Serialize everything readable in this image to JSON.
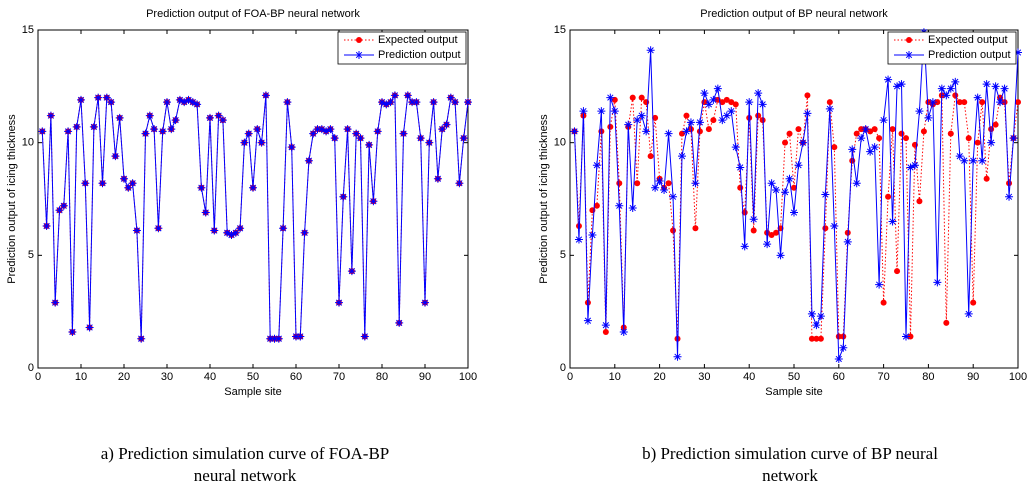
{
  "chart_data": [
    {
      "type": "line",
      "title": "Prediction output of FOA-BP neural network",
      "xlabel": "Sample site",
      "ylabel": "Prediction output of icing thickness",
      "x": [
        1,
        2,
        3,
        4,
        5,
        6,
        7,
        8,
        9,
        10,
        11,
        12,
        13,
        14,
        15,
        16,
        17,
        18,
        19,
        20,
        21,
        22,
        23,
        24,
        25,
        26,
        27,
        28,
        29,
        30,
        31,
        32,
        33,
        34,
        35,
        36,
        37,
        38,
        39,
        40,
        41,
        42,
        43,
        44,
        45,
        46,
        47,
        48,
        49,
        50,
        51,
        52,
        53,
        54,
        55,
        56,
        57,
        58,
        59,
        60,
        61,
        62,
        63,
        64,
        65,
        66,
        67,
        68,
        69,
        70,
        71,
        72,
        73,
        74,
        75,
        76,
        77,
        78,
        79,
        80,
        81,
        82,
        83,
        84,
        85,
        86,
        87,
        88,
        89,
        90,
        91,
        92,
        93,
        94,
        95,
        96,
        97,
        98,
        99,
        100
      ],
      "series": [
        {
          "name": "Expected output",
          "color": "#ff0000",
          "values": [
            10.5,
            6.3,
            11.2,
            2.9,
            7.0,
            7.2,
            10.5,
            1.6,
            10.7,
            11.9,
            8.2,
            1.8,
            10.7,
            12.0,
            8.2,
            12.0,
            11.8,
            9.4,
            11.1,
            8.4,
            8.0,
            8.2,
            6.1,
            1.3,
            10.4,
            11.2,
            10.6,
            6.2,
            10.5,
            11.8,
            10.6,
            11.0,
            11.9,
            11.8,
            11.9,
            11.8,
            11.7,
            8.0,
            6.9,
            11.1,
            6.1,
            11.2,
            11.0,
            6.0,
            5.9,
            6.0,
            6.2,
            10.0,
            10.4,
            8.0,
            10.6,
            10.0,
            12.1,
            1.3,
            1.3,
            1.3,
            6.2,
            11.8,
            9.8,
            1.4,
            1.4,
            6.0,
            9.2,
            10.4,
            10.6,
            10.6,
            10.5,
            10.6,
            10.2,
            2.9,
            7.6,
            10.6,
            4.3,
            10.4,
            10.2,
            1.4,
            9.9,
            7.4,
            10.5,
            11.8,
            11.7,
            11.8,
            12.1,
            2.0,
            10.4,
            12.1,
            11.8,
            11.8,
            10.2,
            2.9,
            10.0,
            11.8,
            8.4,
            10.6,
            10.8,
            12.0,
            11.8,
            8.2,
            10.2,
            11.8
          ]
        },
        {
          "name": "Prediction output",
          "color": "#0000ff",
          "values": [
            10.5,
            6.3,
            11.2,
            2.9,
            7.0,
            7.2,
            10.5,
            1.6,
            10.7,
            11.9,
            8.2,
            1.8,
            10.7,
            12.0,
            8.2,
            12.0,
            11.8,
            9.4,
            11.1,
            8.4,
            8.0,
            8.2,
            6.1,
            1.3,
            10.4,
            11.2,
            10.6,
            6.2,
            10.5,
            11.8,
            10.6,
            11.0,
            11.9,
            11.8,
            11.9,
            11.8,
            11.7,
            8.0,
            6.9,
            11.1,
            6.1,
            11.2,
            11.0,
            6.0,
            5.9,
            6.0,
            6.2,
            10.0,
            10.4,
            8.0,
            10.6,
            10.0,
            12.1,
            1.3,
            1.3,
            1.3,
            6.2,
            11.8,
            9.8,
            1.4,
            1.4,
            6.0,
            9.2,
            10.4,
            10.6,
            10.6,
            10.5,
            10.6,
            10.2,
            2.9,
            7.6,
            10.6,
            4.3,
            10.4,
            10.2,
            1.4,
            9.9,
            7.4,
            10.5,
            11.8,
            11.7,
            11.8,
            12.1,
            2.0,
            10.4,
            12.1,
            11.8,
            11.8,
            10.2,
            2.9,
            10.0,
            11.8,
            8.4,
            10.6,
            10.8,
            12.0,
            11.8,
            8.2,
            10.2,
            11.8
          ]
        }
      ],
      "xlim": [
        0,
        100
      ],
      "xticks": [
        0,
        10,
        20,
        30,
        40,
        50,
        60,
        70,
        80,
        90,
        100
      ],
      "ylim": [
        0,
        15
      ],
      "yticks": [
        0,
        5,
        10,
        15
      ],
      "legend": "upper right"
    },
    {
      "type": "line",
      "title": "Prediction output of BP neural network",
      "xlabel": "Sample site",
      "ylabel": "Prediction output of icing thickness",
      "x": [
        1,
        2,
        3,
        4,
        5,
        6,
        7,
        8,
        9,
        10,
        11,
        12,
        13,
        14,
        15,
        16,
        17,
        18,
        19,
        20,
        21,
        22,
        23,
        24,
        25,
        26,
        27,
        28,
        29,
        30,
        31,
        32,
        33,
        34,
        35,
        36,
        37,
        38,
        39,
        40,
        41,
        42,
        43,
        44,
        45,
        46,
        47,
        48,
        49,
        50,
        51,
        52,
        53,
        54,
        55,
        56,
        57,
        58,
        59,
        60,
        61,
        62,
        63,
        64,
        65,
        66,
        67,
        68,
        69,
        70,
        71,
        72,
        73,
        74,
        75,
        76,
        77,
        78,
        79,
        80,
        81,
        82,
        83,
        84,
        85,
        86,
        87,
        88,
        89,
        90,
        91,
        92,
        93,
        94,
        95,
        96,
        97,
        98,
        99,
        100
      ],
      "series": [
        {
          "name": "Expected output",
          "color": "#ff0000",
          "values": [
            10.5,
            6.3,
            11.2,
            2.9,
            7.0,
            7.2,
            10.5,
            1.6,
            10.7,
            11.9,
            8.2,
            1.8,
            10.7,
            12.0,
            8.2,
            12.0,
            11.8,
            9.4,
            11.1,
            8.4,
            8.0,
            8.2,
            6.1,
            1.3,
            10.4,
            11.2,
            10.6,
            6.2,
            10.5,
            11.8,
            10.6,
            11.0,
            11.9,
            11.8,
            11.9,
            11.8,
            11.7,
            8.0,
            6.9,
            11.1,
            6.1,
            11.2,
            11.0,
            6.0,
            5.9,
            6.0,
            6.2,
            10.0,
            10.4,
            8.0,
            10.6,
            10.0,
            12.1,
            1.3,
            1.3,
            1.3,
            6.2,
            11.8,
            9.8,
            1.4,
            1.4,
            6.0,
            9.2,
            10.4,
            10.6,
            10.6,
            10.5,
            10.6,
            10.2,
            2.9,
            7.6,
            10.6,
            4.3,
            10.4,
            10.2,
            1.4,
            9.9,
            7.4,
            10.5,
            11.8,
            11.7,
            11.8,
            12.1,
            2.0,
            10.4,
            12.1,
            11.8,
            11.8,
            10.2,
            2.9,
            10.0,
            11.8,
            8.4,
            10.6,
            10.8,
            12.0,
            11.8,
            8.2,
            10.2,
            11.8
          ]
        },
        {
          "name": "Prediction output",
          "color": "#0000ff",
          "values": [
            10.5,
            5.7,
            11.4,
            2.1,
            5.9,
            9.0,
            11.4,
            1.9,
            12.0,
            11.4,
            7.2,
            1.6,
            10.8,
            7.1,
            11.0,
            11.2,
            10.5,
            14.1,
            8.0,
            8.3,
            7.9,
            10.4,
            7.6,
            0.5,
            9.4,
            10.5,
            10.9,
            8.2,
            10.9,
            12.2,
            11.7,
            11.9,
            12.4,
            11.0,
            11.2,
            11.4,
            9.8,
            8.9,
            5.4,
            11.8,
            6.6,
            12.2,
            11.7,
            5.5,
            8.2,
            7.9,
            5.0,
            7.8,
            8.4,
            6.9,
            9.0,
            10.0,
            11.3,
            2.4,
            1.9,
            2.3,
            7.7,
            11.5,
            6.3,
            0.4,
            0.9,
            5.6,
            9.7,
            8.2,
            10.2,
            10.6,
            9.6,
            9.8,
            3.7,
            11.0,
            12.8,
            6.5,
            12.5,
            12.6,
            1.4,
            8.9,
            9.0,
            11.4,
            14.9,
            11.1,
            11.8,
            3.8,
            12.4,
            12.1,
            12.4,
            12.7,
            9.4,
            9.2,
            2.4,
            9.2,
            12.0,
            9.2,
            12.6,
            10.0,
            12.5,
            11.8,
            12.4,
            7.6,
            10.2,
            14.0
          ]
        }
      ],
      "xlim": [
        0,
        100
      ],
      "xticks": [
        0,
        10,
        20,
        30,
        40,
        50,
        60,
        70,
        80,
        90,
        100
      ],
      "ylim": [
        0,
        15
      ],
      "yticks": [
        0,
        5,
        10,
        15
      ],
      "legend": "upper right"
    }
  ],
  "captions": [
    "a) Prediction simulation curve of FOA-BP neural network",
    "b) Prediction simulation curve of BP neural network"
  ]
}
